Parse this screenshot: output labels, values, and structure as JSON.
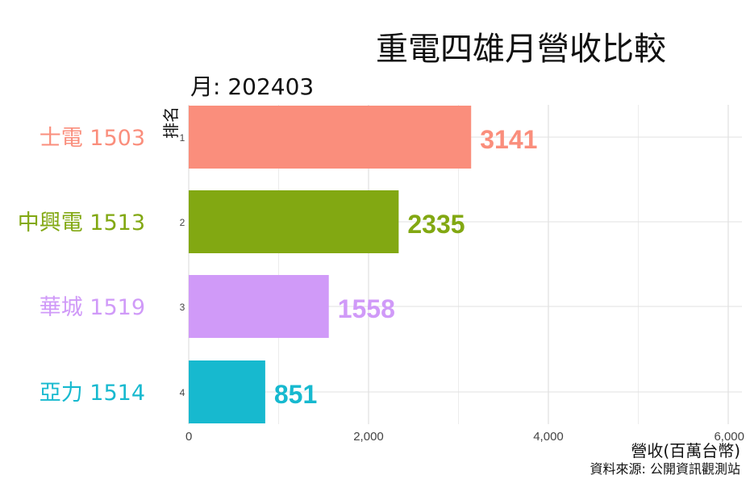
{
  "header": {
    "title": "重電四雄月營收比較",
    "subtitle": "月: 202403"
  },
  "footer": {
    "source": "資料來源: 公開資訊觀測站"
  },
  "chart_data": {
    "type": "bar",
    "orientation": "horizontal",
    "title": "重電四雄月營收比較",
    "subtitle": "月: 202403",
    "xlabel": "營收(百萬台幣)",
    "ylabel": "排名",
    "xlim": [
      0,
      6000
    ],
    "x_ticks": [
      0,
      2000,
      4000,
      6000
    ],
    "x_tick_labels": [
      "0",
      "2,000",
      "4,000",
      "6,000"
    ],
    "grid": true,
    "legend": "none",
    "categories": [
      "士電 1503",
      "中興電 1513",
      "華城 1519",
      "亞力 1514"
    ],
    "ranks": [
      "1",
      "2",
      "3",
      "4"
    ],
    "values": [
      3141,
      2335,
      1558,
      851
    ],
    "value_labels": [
      "3141",
      "2335",
      "1558",
      "851"
    ],
    "colors": [
      "#fa8e7c",
      "#82a812",
      "#d09af8",
      "#17b9cf"
    ]
  }
}
